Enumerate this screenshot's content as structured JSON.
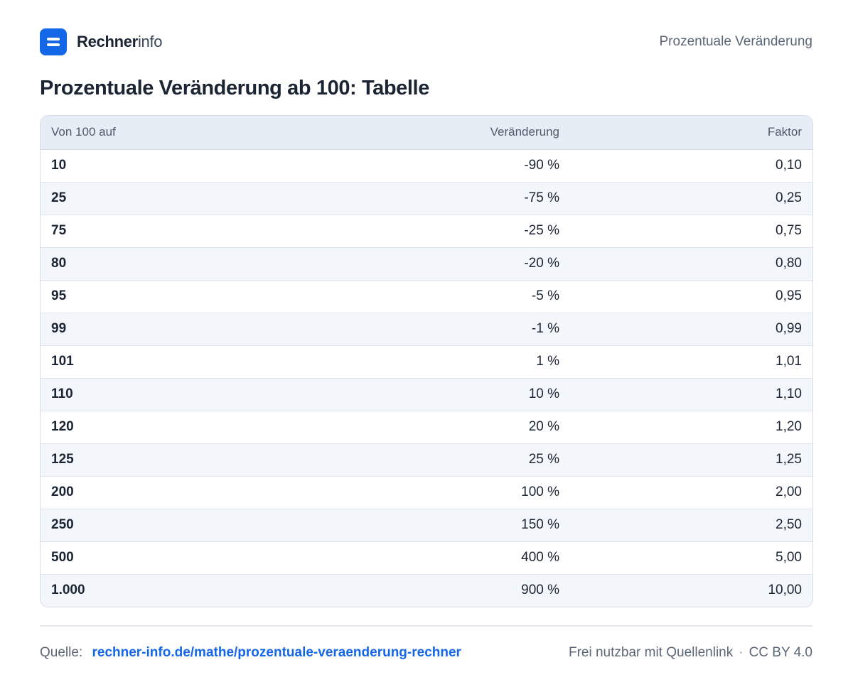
{
  "header": {
    "brand_strong": "Rechner",
    "brand_light": "info",
    "topic": "Prozentuale Veränderung"
  },
  "title": "Prozentuale Veränderung ab 100: Tabelle",
  "table": {
    "columns": [
      "Von 100 auf",
      "Veränderung",
      "Faktor"
    ],
    "rows": [
      [
        "10",
        "-90 %",
        "0,10"
      ],
      [
        "25",
        "-75 %",
        "0,25"
      ],
      [
        "75",
        "-25 %",
        "0,75"
      ],
      [
        "80",
        "-20 %",
        "0,80"
      ],
      [
        "95",
        "-5 %",
        "0,95"
      ],
      [
        "99",
        "-1 %",
        "0,99"
      ],
      [
        "101",
        "1 %",
        "1,01"
      ],
      [
        "110",
        "10 %",
        "1,10"
      ],
      [
        "120",
        "20 %",
        "1,20"
      ],
      [
        "125",
        "25 %",
        "1,25"
      ],
      [
        "200",
        "100 %",
        "2,00"
      ],
      [
        "250",
        "150 %",
        "2,50"
      ],
      [
        "500",
        "400 %",
        "5,00"
      ],
      [
        "1.000",
        "900 %",
        "10,00"
      ]
    ]
  },
  "footer": {
    "source_label": "Quelle:",
    "source_link": "rechner-info.de/mathe/prozentuale-veraenderung-rechner",
    "license_text": "Frei nutzbar mit Quellenlink",
    "separator": "·",
    "license_name": "CC BY 4.0"
  },
  "colors": {
    "accent": "#1467e6",
    "header_row": "#e7edf5",
    "stripe_row": "#f3f6fa",
    "text": "#1b2433",
    "muted": "#5b6676"
  },
  "icons": {
    "logo": "equals-logo-icon"
  }
}
